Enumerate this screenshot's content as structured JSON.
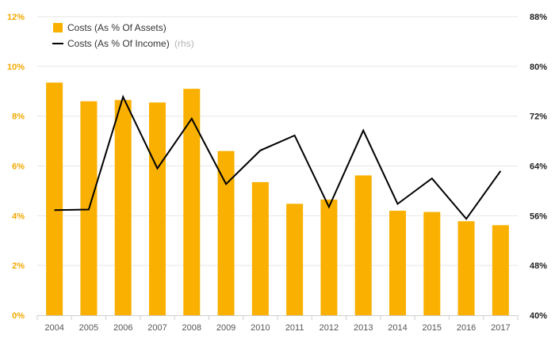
{
  "chart_data": {
    "type": "bar",
    "categories": [
      "2004",
      "2005",
      "2006",
      "2007",
      "2008",
      "2009",
      "2010",
      "2011",
      "2012",
      "2013",
      "2014",
      "2015",
      "2016",
      "2017"
    ],
    "series": [
      {
        "name": "Costs (As % Of Assets)",
        "type": "bar",
        "axis": "left",
        "color": "#f9b000",
        "values": [
          9.35,
          8.6,
          8.65,
          8.55,
          9.1,
          6.6,
          5.35,
          4.48,
          4.65,
          5.62,
          4.2,
          4.15,
          3.78,
          3.62
        ]
      },
      {
        "name": "Costs (As % Of Income)",
        "name_suffix": "(rhs)",
        "type": "line",
        "axis": "right",
        "color": "#000000",
        "values": [
          56.9,
          57.0,
          75.1,
          63.6,
          71.6,
          61.1,
          66.5,
          68.9,
          57.4,
          69.7,
          57.9,
          62.0,
          55.5,
          63.2
        ]
      }
    ],
    "y_left": {
      "min": 0,
      "max": 12,
      "step": 2,
      "ticks": [
        "0%",
        "2%",
        "4%",
        "6%",
        "8%",
        "10%",
        "12%"
      ],
      "color": "#f2a900"
    },
    "y_right": {
      "min": 40,
      "max": 88,
      "step": 8,
      "ticks": [
        "40%",
        "48%",
        "56%",
        "64%",
        "72%",
        "80%",
        "88%"
      ],
      "color": "#222222"
    },
    "grid": true,
    "legend_position": "top-left",
    "title": "",
    "xlabel": "",
    "ylabel": ""
  }
}
